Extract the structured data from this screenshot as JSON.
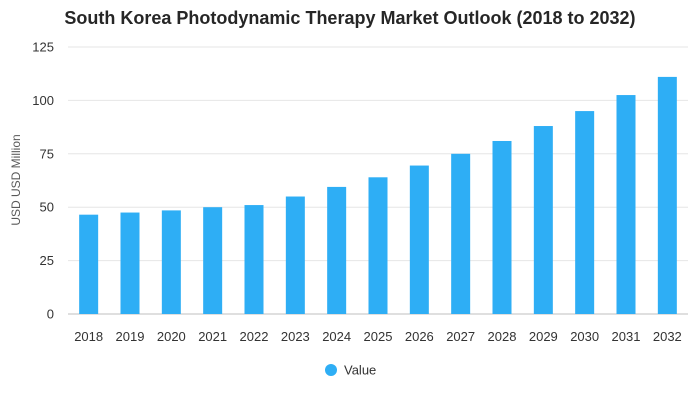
{
  "chart_data": {
    "type": "bar",
    "title": "South Korea Photodynamic Therapy Market Outlook (2018 to 2032)",
    "xlabel": "",
    "ylabel": "USD USD Million",
    "categories": [
      "2018",
      "2019",
      "2020",
      "2021",
      "2022",
      "2023",
      "2024",
      "2025",
      "2026",
      "2027",
      "2028",
      "2029",
      "2030",
      "2031",
      "2032"
    ],
    "series": [
      {
        "name": "Value",
        "color": "#2eaef5",
        "values": [
          46.5,
          47.5,
          48.5,
          50,
          51,
          55,
          59.5,
          64,
          69.5,
          75,
          81,
          88,
          95,
          102.5,
          111
        ]
      }
    ],
    "ylim": [
      0,
      125
    ],
    "yticks": [
      0,
      25,
      50,
      75,
      100,
      125
    ],
    "grid": true,
    "legend_position": "bottom-center"
  }
}
